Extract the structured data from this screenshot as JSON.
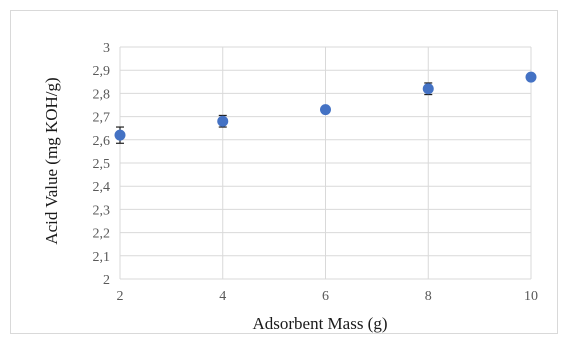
{
  "chart_data": {
    "type": "scatter",
    "title": "",
    "xlabel": "Adsorbent Mass (g)",
    "ylabel": "Acid Value (mg KOH/g)",
    "x": [
      2,
      4,
      6,
      8,
      10
    ],
    "y": [
      2.62,
      2.68,
      2.73,
      2.82,
      2.87
    ],
    "y_error": [
      0.035,
      0.025,
      0.01,
      0.025,
      0.01
    ],
    "xlim": [
      2,
      10
    ],
    "ylim": [
      2,
      3
    ],
    "xticks": [
      2,
      4,
      6,
      8,
      10
    ],
    "xtick_labels": [
      "2",
      "4",
      "6",
      "8",
      "10"
    ],
    "yticks": [
      2,
      2.1,
      2.2,
      2.3,
      2.4,
      2.5,
      2.6,
      2.7,
      2.8,
      2.9,
      3
    ],
    "ytick_labels": [
      "2",
      "2,1",
      "2,2",
      "2,3",
      "2,4",
      "2,5",
      "2,6",
      "2,7",
      "2,8",
      "2,9",
      "3"
    ],
    "grid": true,
    "marker_color": "#4472c4",
    "error_bar_color": "#1f1f1f",
    "grid_color": "#d9d9d9"
  }
}
